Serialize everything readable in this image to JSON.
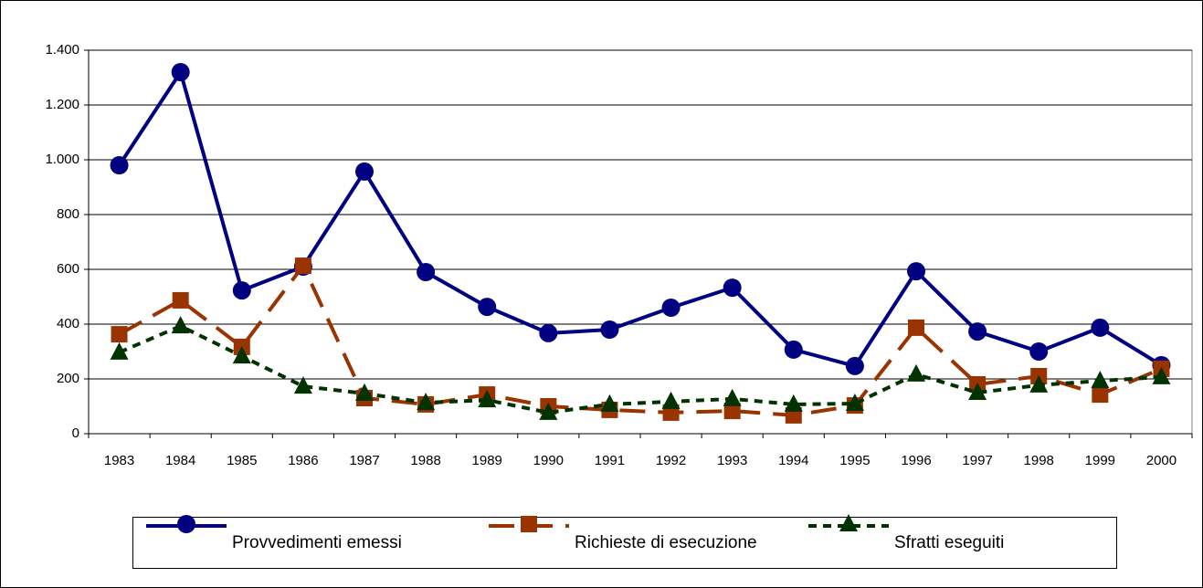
{
  "chart_data": {
    "type": "line",
    "categories": [
      "1983",
      "1984",
      "1985",
      "1986",
      "1987",
      "1988",
      "1989",
      "1990",
      "1991",
      "1992",
      "1993",
      "1994",
      "1995",
      "1996",
      "1997",
      "1998",
      "1999",
      "2000"
    ],
    "ylim": [
      0,
      1400
    ],
    "yticks": [
      0,
      200,
      400,
      600,
      800,
      {
        "value": 1000,
        "label": "1.000"
      },
      {
        "value": 1200,
        "label": "1.200"
      },
      {
        "value": 1400,
        "label": "1.400"
      }
    ],
    "grid": true,
    "legend": "bottom",
    "series": [
      {
        "name": "Provvedimenti emessi",
        "color": "#000080",
        "marker": "circle",
        "dash": "solid",
        "values": [
          980,
          1320,
          523,
          610,
          957,
          590,
          463,
          367,
          380,
          460,
          533,
          307,
          247,
          593,
          373,
          300,
          387,
          250
        ]
      },
      {
        "name": "Richieste di esecuzione",
        "color": "#993300",
        "marker": "square",
        "dash": "long",
        "values": [
          363,
          487,
          317,
          613,
          130,
          107,
          143,
          100,
          87,
          77,
          83,
          67,
          103,
          387,
          180,
          210,
          143,
          237
        ]
      },
      {
        "name": "Sfratti eseguiti",
        "color": "#003300",
        "marker": "triangle",
        "dash": "short",
        "values": [
          297,
          393,
          283,
          173,
          147,
          113,
          123,
          77,
          107,
          117,
          127,
          107,
          110,
          217,
          150,
          177,
          193,
          207
        ]
      }
    ]
  }
}
